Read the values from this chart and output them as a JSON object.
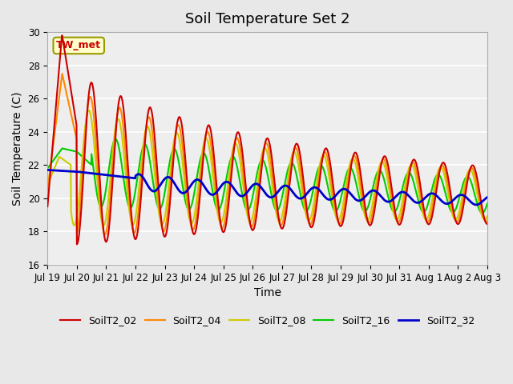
{
  "title": "Soil Temperature Set 2",
  "xlabel": "Time",
  "ylabel": "Soil Temperature (C)",
  "ylim": [
    16,
    30
  ],
  "annotation": "TW_met",
  "series_colors": {
    "SoilT2_02": "#cc0000",
    "SoilT2_04": "#ff8800",
    "SoilT2_08": "#cccc00",
    "SoilT2_16": "#00cc00",
    "SoilT2_32": "#0000cc"
  },
  "series_linewidths": {
    "SoilT2_02": 1.5,
    "SoilT2_04": 1.5,
    "SoilT2_08": 1.5,
    "SoilT2_16": 1.5,
    "SoilT2_32": 2.0
  },
  "xtick_labels": [
    "Jul 19",
    "Jul 20",
    "Jul 21",
    "Jul 22",
    "Jul 23",
    "Jul 24",
    "Jul 25",
    "Jul 26",
    "Jul 27",
    "Jul 28",
    "Jul 29",
    "Jul 30",
    "Jul 31",
    "Aug 1",
    "Aug 2",
    "Aug 3"
  ],
  "ytick_values": [
    16,
    18,
    20,
    22,
    24,
    26,
    28,
    30
  ],
  "background_color": "#e8e8e8",
  "plot_background": "#eeeeee",
  "grid_color": "#ffffff",
  "title_fontsize": 13,
  "axis_label_fontsize": 10,
  "tick_fontsize": 8.5,
  "legend_fontsize": 9
}
